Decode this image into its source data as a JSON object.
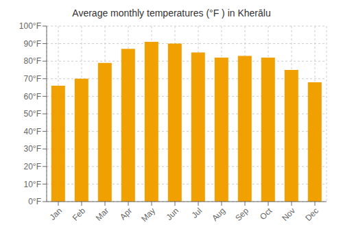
{
  "chart_data": {
    "type": "bar",
    "title": "Average monthly temperatures (°F ) in Kherālu",
    "categories": [
      "Jan",
      "Feb",
      "Mar",
      "Apr",
      "May",
      "Jun",
      "Jul",
      "Aug",
      "Sep",
      "Oct",
      "Nov",
      "Dec"
    ],
    "values": [
      66,
      70,
      79,
      87,
      91,
      90,
      85,
      82,
      83,
      82,
      75,
      68
    ],
    "color": "#F0A000",
    "ylim": [
      0,
      100
    ],
    "yticks": [
      {
        "value": 0,
        "label": "0°F"
      },
      {
        "value": 10,
        "label": "10°F"
      },
      {
        "value": 20,
        "label": "20°F"
      },
      {
        "value": 30,
        "label": "30°F"
      },
      {
        "value": 40,
        "label": "40°F"
      },
      {
        "value": 50,
        "label": "50°F"
      },
      {
        "value": 60,
        "label": "60°F"
      },
      {
        "value": 70,
        "label": "70°F"
      },
      {
        "value": 80,
        "label": "80°F"
      },
      {
        "value": 90,
        "label": "90°F"
      },
      {
        "value": 100,
        "label": "100°F"
      }
    ],
    "grid": true
  }
}
